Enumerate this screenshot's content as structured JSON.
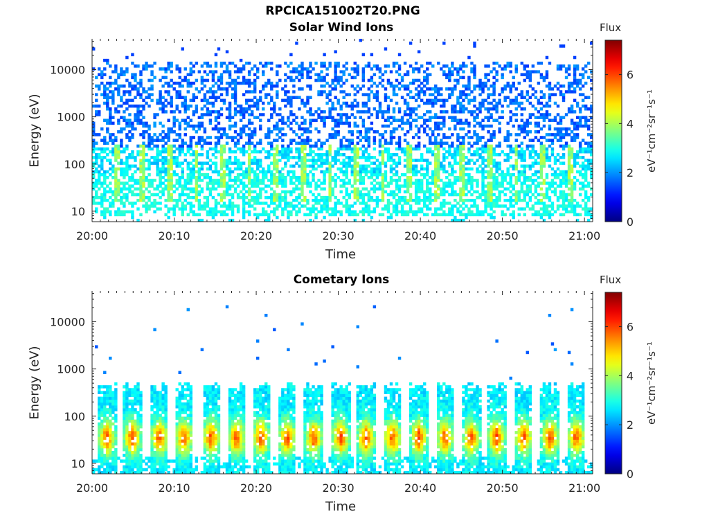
{
  "figure": {
    "title": "RPCICA151002T20.PNG"
  },
  "chart_data": [
    {
      "type": "heatmap",
      "title": "Solar Wind Ions",
      "xlabel": "Time",
      "ylabel": "Energy (eV)",
      "x_ticks": [
        "20:00",
        "20:10",
        "20:20",
        "20:30",
        "20:40",
        "20:50",
        "21:00"
      ],
      "x_range_minutes": [
        0,
        61
      ],
      "y_ticks": [
        "10",
        "100",
        "1000",
        "10000"
      ],
      "y_scale": "log",
      "y_range": [
        6,
        45000
      ],
      "colorbar": {
        "title": "Flux",
        "unit": "eV⁻¹cm⁻²sr⁻¹s⁻¹",
        "ticks": [
          0,
          2,
          4,
          6
        ],
        "range": [
          0,
          7.4
        ],
        "colormap": "jet"
      },
      "description_pattern": "sparse blue pixels (flux ~1-2) spanning 100-20000 eV, cyan/green band below ~200 eV with periodic greenish bursts every ~3.3 min"
    },
    {
      "type": "heatmap",
      "title": "Cometary Ions",
      "xlabel": "Time",
      "ylabel": "Energy (eV)",
      "x_ticks": [
        "20:00",
        "20:10",
        "20:20",
        "20:30",
        "20:40",
        "20:50",
        "21:00"
      ],
      "x_range_minutes": [
        0,
        61
      ],
      "y_ticks": [
        "10",
        "100",
        "1000",
        "10000"
      ],
      "y_scale": "log",
      "y_range": [
        6,
        45000
      ],
      "colorbar": {
        "title": "Flux",
        "unit": "eV⁻¹cm⁻²sr⁻¹s⁻¹",
        "ticks": [
          0,
          2,
          4,
          6
        ],
        "range": [
          0,
          7.4
        ],
        "colormap": "jet"
      },
      "bursts_center_minutes": [
        1.8,
        4.9,
        8.2,
        11.2,
        14.5,
        17.6,
        20.6,
        23.8,
        27.0,
        30.3,
        33.4,
        36.6,
        39.8,
        43.0,
        46.2,
        49.3,
        52.6,
        55.8,
        59.0
      ],
      "description_pattern": "periodic vertical bursts of cometary ions between ~6 and ~500 eV, peak flux (~5-6, orange/red) near 20-60 eV, sparse high-energy blue pixels"
    }
  ],
  "colors": {
    "axis": "#262626",
    "background": "#ffffff"
  }
}
